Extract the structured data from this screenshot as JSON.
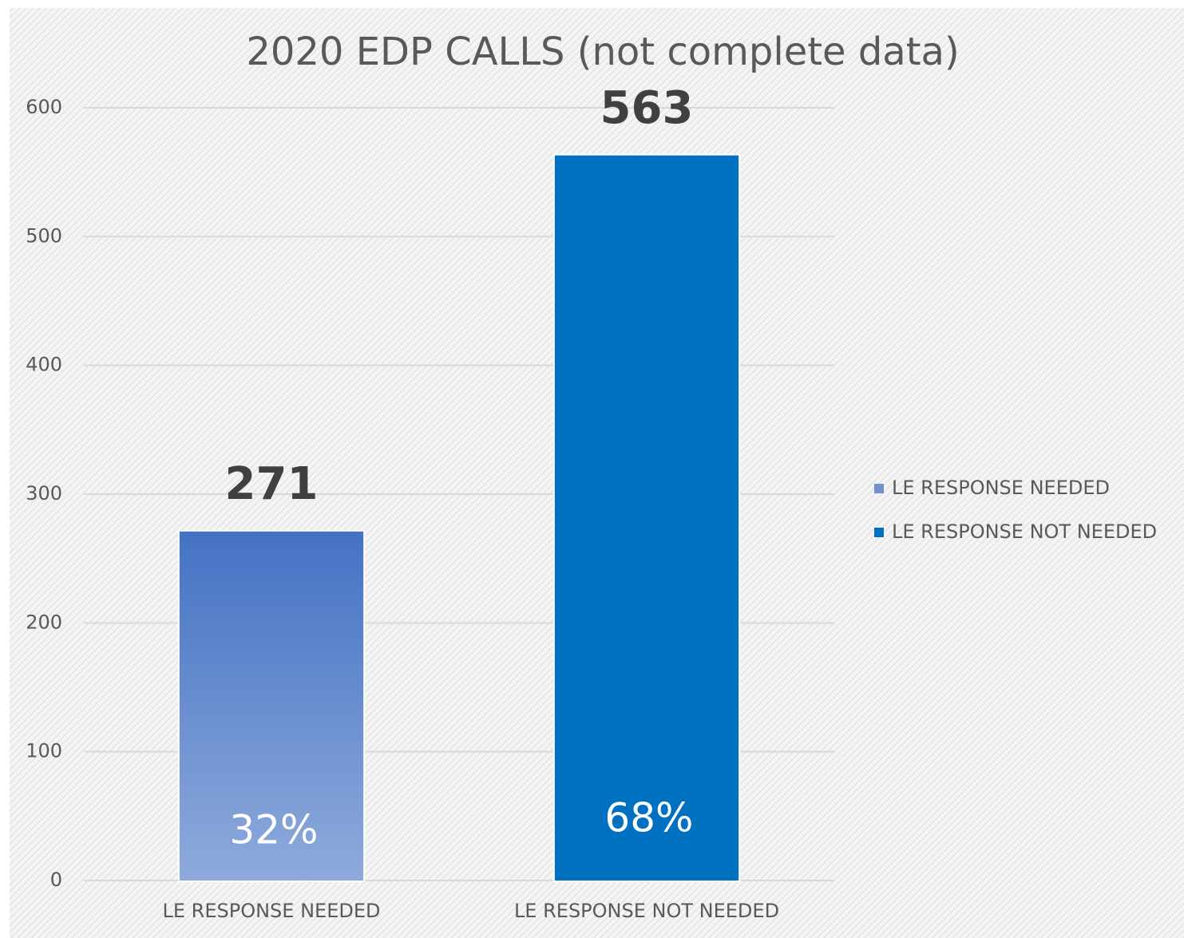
{
  "chart_data": {
    "type": "bar",
    "title": "2020 EDP CALLS (not complete data)",
    "categories": [
      "LE RESPONSE NEEDED",
      "LE RESPONSE NOT NEEDED"
    ],
    "values": [
      271,
      563
    ],
    "colors": [
      "#4472c4",
      "#0070c0"
    ],
    "shares": [
      32,
      68
    ],
    "share_labels": [
      "32%",
      "68%"
    ],
    "ylim": [
      0,
      600
    ],
    "yticks": [
      0,
      100,
      200,
      300,
      400,
      500,
      600
    ],
    "grid": true,
    "legend": "right"
  }
}
